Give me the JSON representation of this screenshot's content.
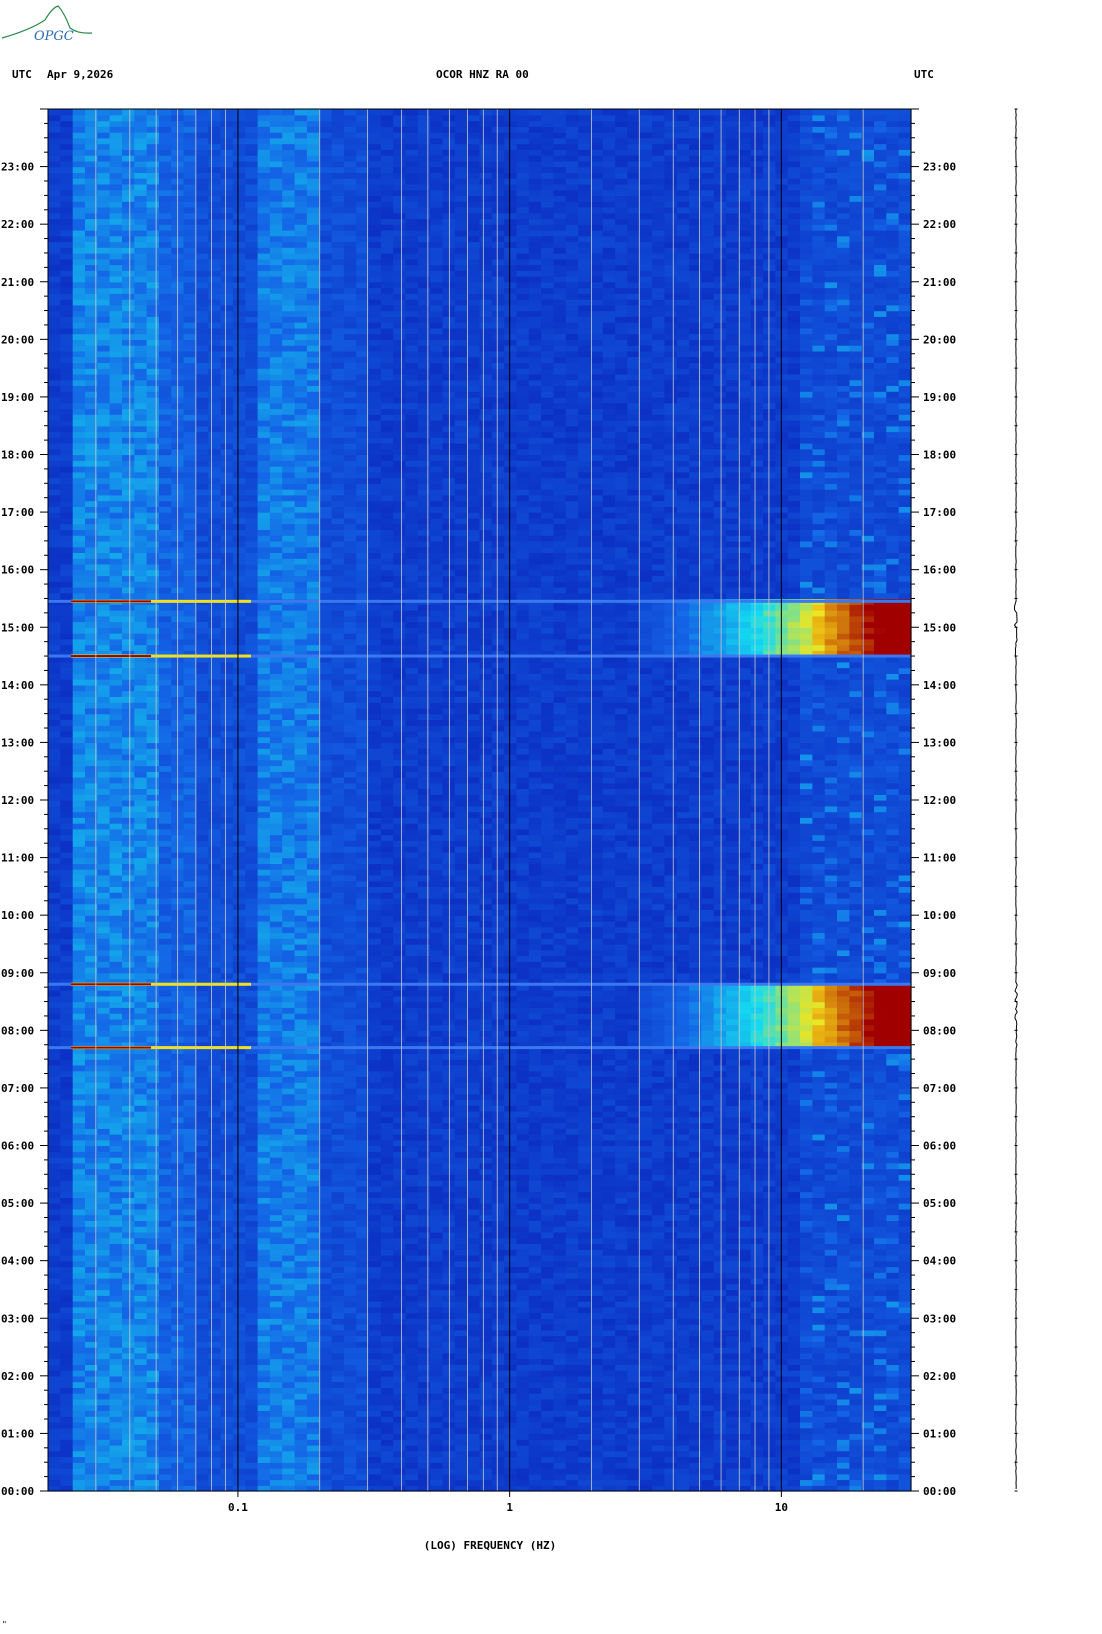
{
  "header": {
    "left_utc": "UTC",
    "date": "Apr 9,2026",
    "station": "OCOR HNZ RA 00",
    "right_utc": "UTC"
  },
  "logo": {
    "text": "OPGC"
  },
  "footer_mark": "\"",
  "colors": {
    "background": "#0a1fc8",
    "low": "#1a3ae0",
    "mid": "#16c8f0",
    "high_yellow": "#f0e020",
    "high_red": "#a00000",
    "gridline": "#c8c8c8",
    "decade_line": "#000000"
  },
  "chart_data": {
    "type": "heatmap",
    "title": "OCOR HNZ RA 00",
    "xlabel": "(LOG) FREQUENCY (HZ)",
    "ylabel": "UTC",
    "x_scale": "log",
    "xlim": [
      0.02,
      30
    ],
    "x_ticks": [
      {
        "value": 0.1,
        "label": "0.1"
      },
      {
        "value": 1,
        "label": "1"
      },
      {
        "value": 10,
        "label": "10"
      }
    ],
    "ylim_hours": [
      0,
      24
    ],
    "y_ticks": [
      "00:00",
      "01:00",
      "02:00",
      "03:00",
      "04:00",
      "05:00",
      "06:00",
      "07:00",
      "08:00",
      "09:00",
      "10:00",
      "11:00",
      "12:00",
      "13:00",
      "14:00",
      "15:00",
      "16:00",
      "17:00",
      "18:00",
      "19:00",
      "20:00",
      "21:00",
      "22:00",
      "23:00"
    ],
    "grid": true,
    "features": [
      {
        "type": "broadband_burst",
        "start_hour": 14.5,
        "end_hour": 15.45
      },
      {
        "type": "broadband_burst",
        "start_hour": 7.7,
        "end_hour": 8.8
      },
      {
        "type": "microseism_band",
        "freq_range_hz": [
          0.12,
          0.2
        ]
      },
      {
        "type": "low_freq_band",
        "freq_range_hz": [
          0.025,
          0.05
        ]
      }
    ]
  }
}
